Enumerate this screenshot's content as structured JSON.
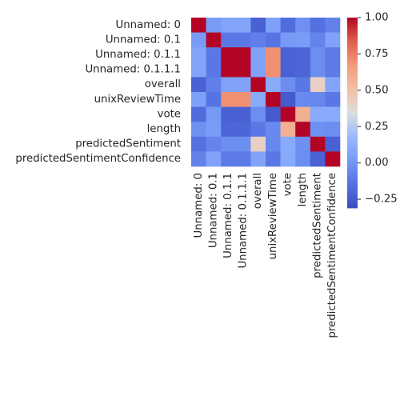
{
  "chart_data": {
    "type": "heatmap",
    "colormap": "coolwarm",
    "colors": {
      "low": "#3b4cc0",
      "mid": "#dddddd",
      "high": "#b40426"
    },
    "row_labels": [
      "Unnamed: 0",
      "Unnamed: 0.1",
      "Unnamed: 0.1.1",
      "Unnamed: 0.1.1.1",
      "overall",
      "unixReviewTime",
      "vote",
      "length",
      "predictedSentiment",
      "predictedSentimentConfidence"
    ],
    "col_labels": [
      "Unnamed: 0",
      "Unnamed: 0.1",
      "Unnamed: 0.1.1",
      "Unnamed: 0.1.1.1",
      "overall",
      "unixReviewTime",
      "vote",
      "length",
      "predictedSentiment",
      "predictedSentimentConfidence"
    ],
    "values": [
      [
        1.0,
        0.03,
        0.07,
        0.07,
        -0.22,
        0.05,
        -0.17,
        -0.02,
        -0.15,
        -0.08
      ],
      [
        0.03,
        1.0,
        -0.12,
        -0.12,
        -0.09,
        -0.14,
        0.02,
        0.03,
        -0.07,
        0.06
      ],
      [
        0.07,
        -0.12,
        1.0,
        1.0,
        0.06,
        0.7,
        -0.22,
        -0.2,
        -0.03,
        -0.11
      ],
      [
        0.07,
        -0.12,
        1.0,
        1.0,
        0.06,
        0.7,
        -0.22,
        -0.2,
        -0.03,
        -0.11
      ],
      [
        -0.22,
        -0.09,
        0.06,
        0.06,
        1.0,
        0.1,
        -0.03,
        -0.12,
        0.42,
        0.07
      ],
      [
        0.05,
        -0.14,
        0.7,
        0.7,
        0.1,
        1.0,
        -0.25,
        -0.05,
        -0.06,
        -0.12
      ],
      [
        -0.17,
        0.02,
        -0.22,
        -0.22,
        -0.03,
        -0.25,
        1.0,
        0.58,
        0.1,
        0.1
      ],
      [
        -0.02,
        0.03,
        -0.2,
        -0.2,
        -0.12,
        -0.05,
        0.58,
        1.0,
        -0.02,
        -0.03
      ],
      [
        -0.15,
        -0.07,
        -0.03,
        -0.03,
        0.42,
        -0.06,
        0.1,
        -0.02,
        1.0,
        -0.22
      ],
      [
        -0.08,
        0.06,
        -0.11,
        -0.11,
        0.07,
        -0.12,
        0.1,
        -0.03,
        -0.22,
        1.0
      ]
    ],
    "colorbar": {
      "range": [
        -0.31,
        1.0
      ],
      "ticks": [
        -0.25,
        0.0,
        0.25,
        0.5,
        0.75,
        1.0
      ],
      "tick_labels": [
        "−0.25",
        "0.00",
        "0.25",
        "0.50",
        "0.75",
        "1.00"
      ]
    }
  }
}
